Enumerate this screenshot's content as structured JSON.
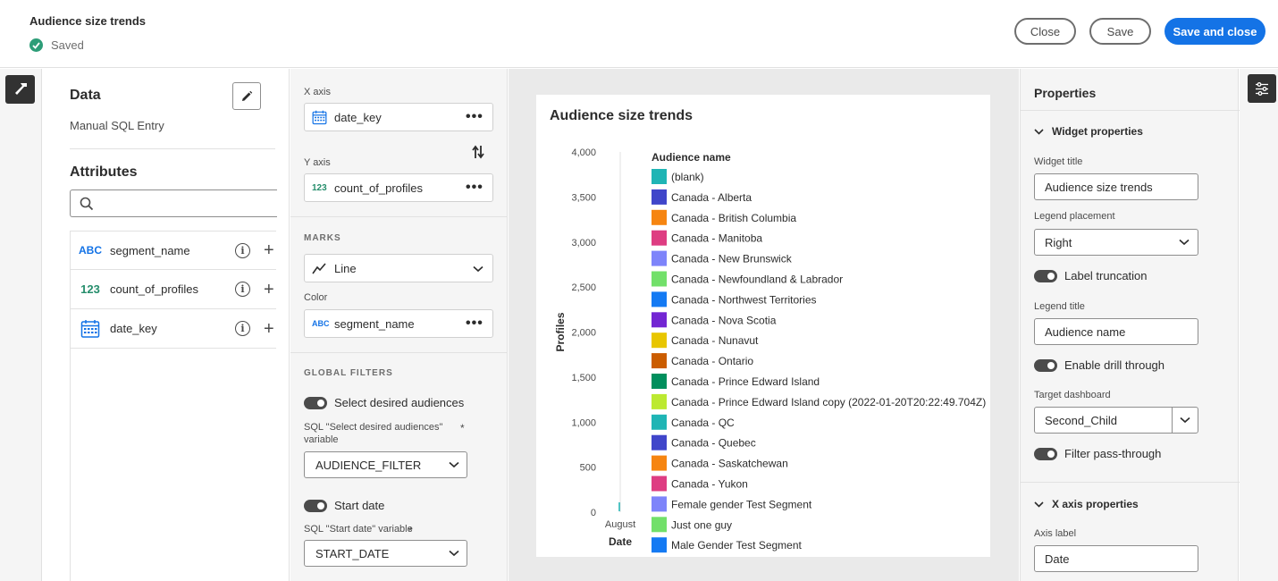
{
  "header": {
    "title": "Audience size trends",
    "status": "Saved",
    "close_label": "Close",
    "save_label": "Save",
    "save_close_label": "Save and close"
  },
  "data_panel": {
    "title": "Data",
    "source": "Manual SQL Entry",
    "attributes_title": "Attributes",
    "search_placeholder": "",
    "attributes": [
      {
        "type": "ABC",
        "name": "segment_name"
      },
      {
        "type": "123",
        "name": "count_of_profiles"
      },
      {
        "type": "calendar-icon",
        "name": "date_key"
      }
    ]
  },
  "encoding": {
    "x_axis_label": "X axis",
    "x_axis_field": "date_key",
    "y_axis_label": "Y axis",
    "y_axis_field": "count_of_profiles",
    "y_axis_type": "123",
    "marks_label": "MARKS",
    "marks_value": "Line",
    "color_label": "Color",
    "color_field": "segment_name",
    "color_type": "ABC",
    "filters_label": "GLOBAL FILTERS",
    "filters": [
      {
        "toggle_label": "Select desired audiences",
        "var_label": "SQL \"Select desired audiences\" variable",
        "value": "AUDIENCE_FILTER"
      },
      {
        "toggle_label": "Start date",
        "var_label": "SQL \"Start date\" variable",
        "value": "START_DATE"
      }
    ],
    "required_mark": "*"
  },
  "chart_data": {
    "type": "line",
    "title": "Audience size trends",
    "xlabel": "Date",
    "ylabel": "Profiles",
    "x": [
      "August"
    ],
    "y_ticks": [
      "4,000",
      "3,500",
      "3,000",
      "2,500",
      "2,000",
      "1,500",
      "1,000",
      "500",
      "0"
    ],
    "ylim": [
      0,
      4000
    ],
    "legend_title": "Audience name",
    "legend_placement": "right",
    "series": [
      {
        "name": "(blank)",
        "color": "#1fb5b5"
      },
      {
        "name": "Canada - Alberta",
        "color": "#4046ca"
      },
      {
        "name": "Canada - British Columbia",
        "color": "#f68511"
      },
      {
        "name": "Canada - Manitoba",
        "color": "#de3d82"
      },
      {
        "name": "Canada - New Brunswick",
        "color": "#7e84fa"
      },
      {
        "name": "Canada - Newfoundland & Labrador",
        "color": "#72e06a"
      },
      {
        "name": "Canada - Northwest Territories",
        "color": "#147af3"
      },
      {
        "name": "Canada - Nova Scotia",
        "color": "#7326d3"
      },
      {
        "name": "Canada - Nunavut",
        "color": "#e8c600"
      },
      {
        "name": "Canada - Ontario",
        "color": "#cb5d00"
      },
      {
        "name": "Canada - Prince Edward Island",
        "color": "#008f5d"
      },
      {
        "name": "Canada - Prince Edward Island copy (2022-01-20T20:22:49.704Z)",
        "color": "#bce931"
      },
      {
        "name": "Canada - QC",
        "color": "#1fb5b5"
      },
      {
        "name": "Canada - Quebec",
        "color": "#4046ca"
      },
      {
        "name": "Canada - Saskatchewan",
        "color": "#f68511"
      },
      {
        "name": "Canada - Yukon",
        "color": "#de3d82"
      },
      {
        "name": "Female gender Test Segment",
        "color": "#7e84fa"
      },
      {
        "name": "Just one guy",
        "color": "#72e06a"
      },
      {
        "name": "Male Gender Test Segment",
        "color": "#147af3"
      }
    ]
  },
  "properties": {
    "title": "Properties",
    "widget_section": "Widget properties",
    "widget_title_label": "Widget title",
    "widget_title_value": "Audience size trends",
    "legend_placement_label": "Legend placement",
    "legend_placement_value": "Right",
    "label_truncation": "Label truncation",
    "legend_title_label": "Legend title",
    "legend_title_value": "Audience name",
    "drill_through": "Enable drill through",
    "target_dashboard_label": "Target dashboard",
    "target_dashboard_value": "Second_Child",
    "filter_pass_through": "Filter pass-through",
    "x_axis_section": "X axis properties",
    "axis_label_label": "Axis label",
    "axis_label_value": "Date"
  }
}
